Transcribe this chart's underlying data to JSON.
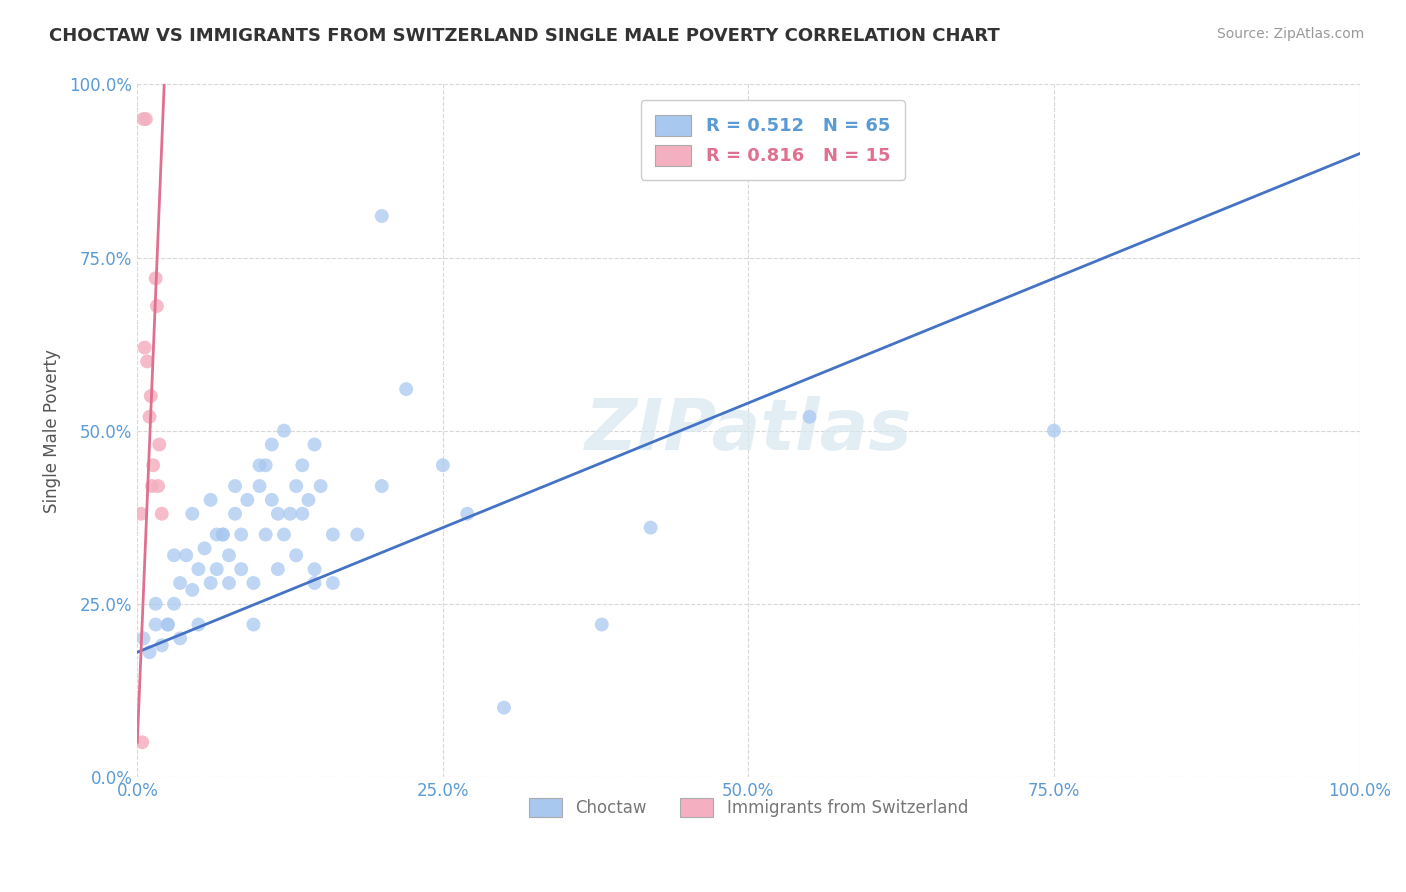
{
  "title": "CHOCTAW VS IMMIGRANTS FROM SWITZERLAND SINGLE MALE POVERTY CORRELATION CHART",
  "source": "Source: ZipAtlas.com",
  "ylabel": "Single Male Poverty",
  "watermark": "ZIPatlas",
  "legend_entries": [
    {
      "label": "R = 0.512   N = 65",
      "color": "#5b9bd5"
    },
    {
      "label": "R = 0.816   N = 15",
      "color": "#e07090"
    }
  ],
  "bottom_legend": [
    "Choctaw",
    "Immigrants from Switzerland"
  ],
  "choctaw_x": [
    0.5,
    1.0,
    1.5,
    2.0,
    2.5,
    3.0,
    3.5,
    4.0,
    4.5,
    5.0,
    5.5,
    6.0,
    6.5,
    7.0,
    7.5,
    8.0,
    8.5,
    9.0,
    9.5,
    10.0,
    10.5,
    11.0,
    11.5,
    12.0,
    12.5,
    13.0,
    13.5,
    14.0,
    14.5,
    15.0,
    2.5,
    3.5,
    5.0,
    6.5,
    7.5,
    8.5,
    9.5,
    10.5,
    11.5,
    13.0,
    14.5,
    16.0,
    1.5,
    3.0,
    4.5,
    6.0,
    7.0,
    8.0,
    10.0,
    11.0,
    12.0,
    13.5,
    14.5,
    16.0,
    18.0,
    20.0,
    22.0,
    25.0,
    27.0,
    30.0,
    38.0,
    55.0,
    75.0,
    42.0,
    20.0
  ],
  "choctaw_y": [
    20.0,
    18.0,
    22.0,
    19.0,
    22.0,
    25.0,
    28.0,
    32.0,
    27.0,
    30.0,
    33.0,
    28.0,
    30.0,
    35.0,
    32.0,
    38.0,
    35.0,
    40.0,
    22.0,
    42.0,
    45.0,
    40.0,
    30.0,
    35.0,
    38.0,
    42.0,
    45.0,
    40.0,
    48.0,
    42.0,
    22.0,
    20.0,
    22.0,
    35.0,
    28.0,
    30.0,
    28.0,
    35.0,
    38.0,
    32.0,
    28.0,
    35.0,
    25.0,
    32.0,
    38.0,
    40.0,
    35.0,
    42.0,
    45.0,
    48.0,
    50.0,
    38.0,
    30.0,
    28.0,
    35.0,
    42.0,
    56.0,
    45.0,
    38.0,
    10.0,
    22.0,
    52.0,
    50.0,
    36.0,
    81.0
  ],
  "swiss_x": [
    0.3,
    0.5,
    0.7,
    0.8,
    1.0,
    1.1,
    1.2,
    1.3,
    1.5,
    1.6,
    1.7,
    1.8,
    2.0,
    0.6,
    0.4
  ],
  "swiss_y": [
    38.0,
    95.0,
    95.0,
    60.0,
    52.0,
    55.0,
    42.0,
    45.0,
    72.0,
    68.0,
    42.0,
    48.0,
    38.0,
    62.0,
    5.0
  ],
  "choctaw_line_x": [
    0,
    100
  ],
  "choctaw_line_y": [
    18.0,
    90.0
  ],
  "swiss_line_x": [
    0.0,
    2.2
  ],
  "swiss_line_y": [
    5.0,
    100.0
  ],
  "choctaw_dot_color": "#a8c8f0",
  "swiss_dot_color": "#f4b0c0",
  "choctaw_line_color": "#4472c4",
  "swiss_line_color": "#e07090",
  "bg_color": "#ffffff",
  "grid_color": "#d8d8d8",
  "title_color": "#333333",
  "tick_color": "#5b9bd5",
  "xlim": [
    0,
    100
  ],
  "ylim": [
    0,
    100
  ],
  "xticks": [
    0,
    25,
    50,
    75,
    100
  ],
  "yticks": [
    0,
    25,
    50,
    75,
    100
  ]
}
